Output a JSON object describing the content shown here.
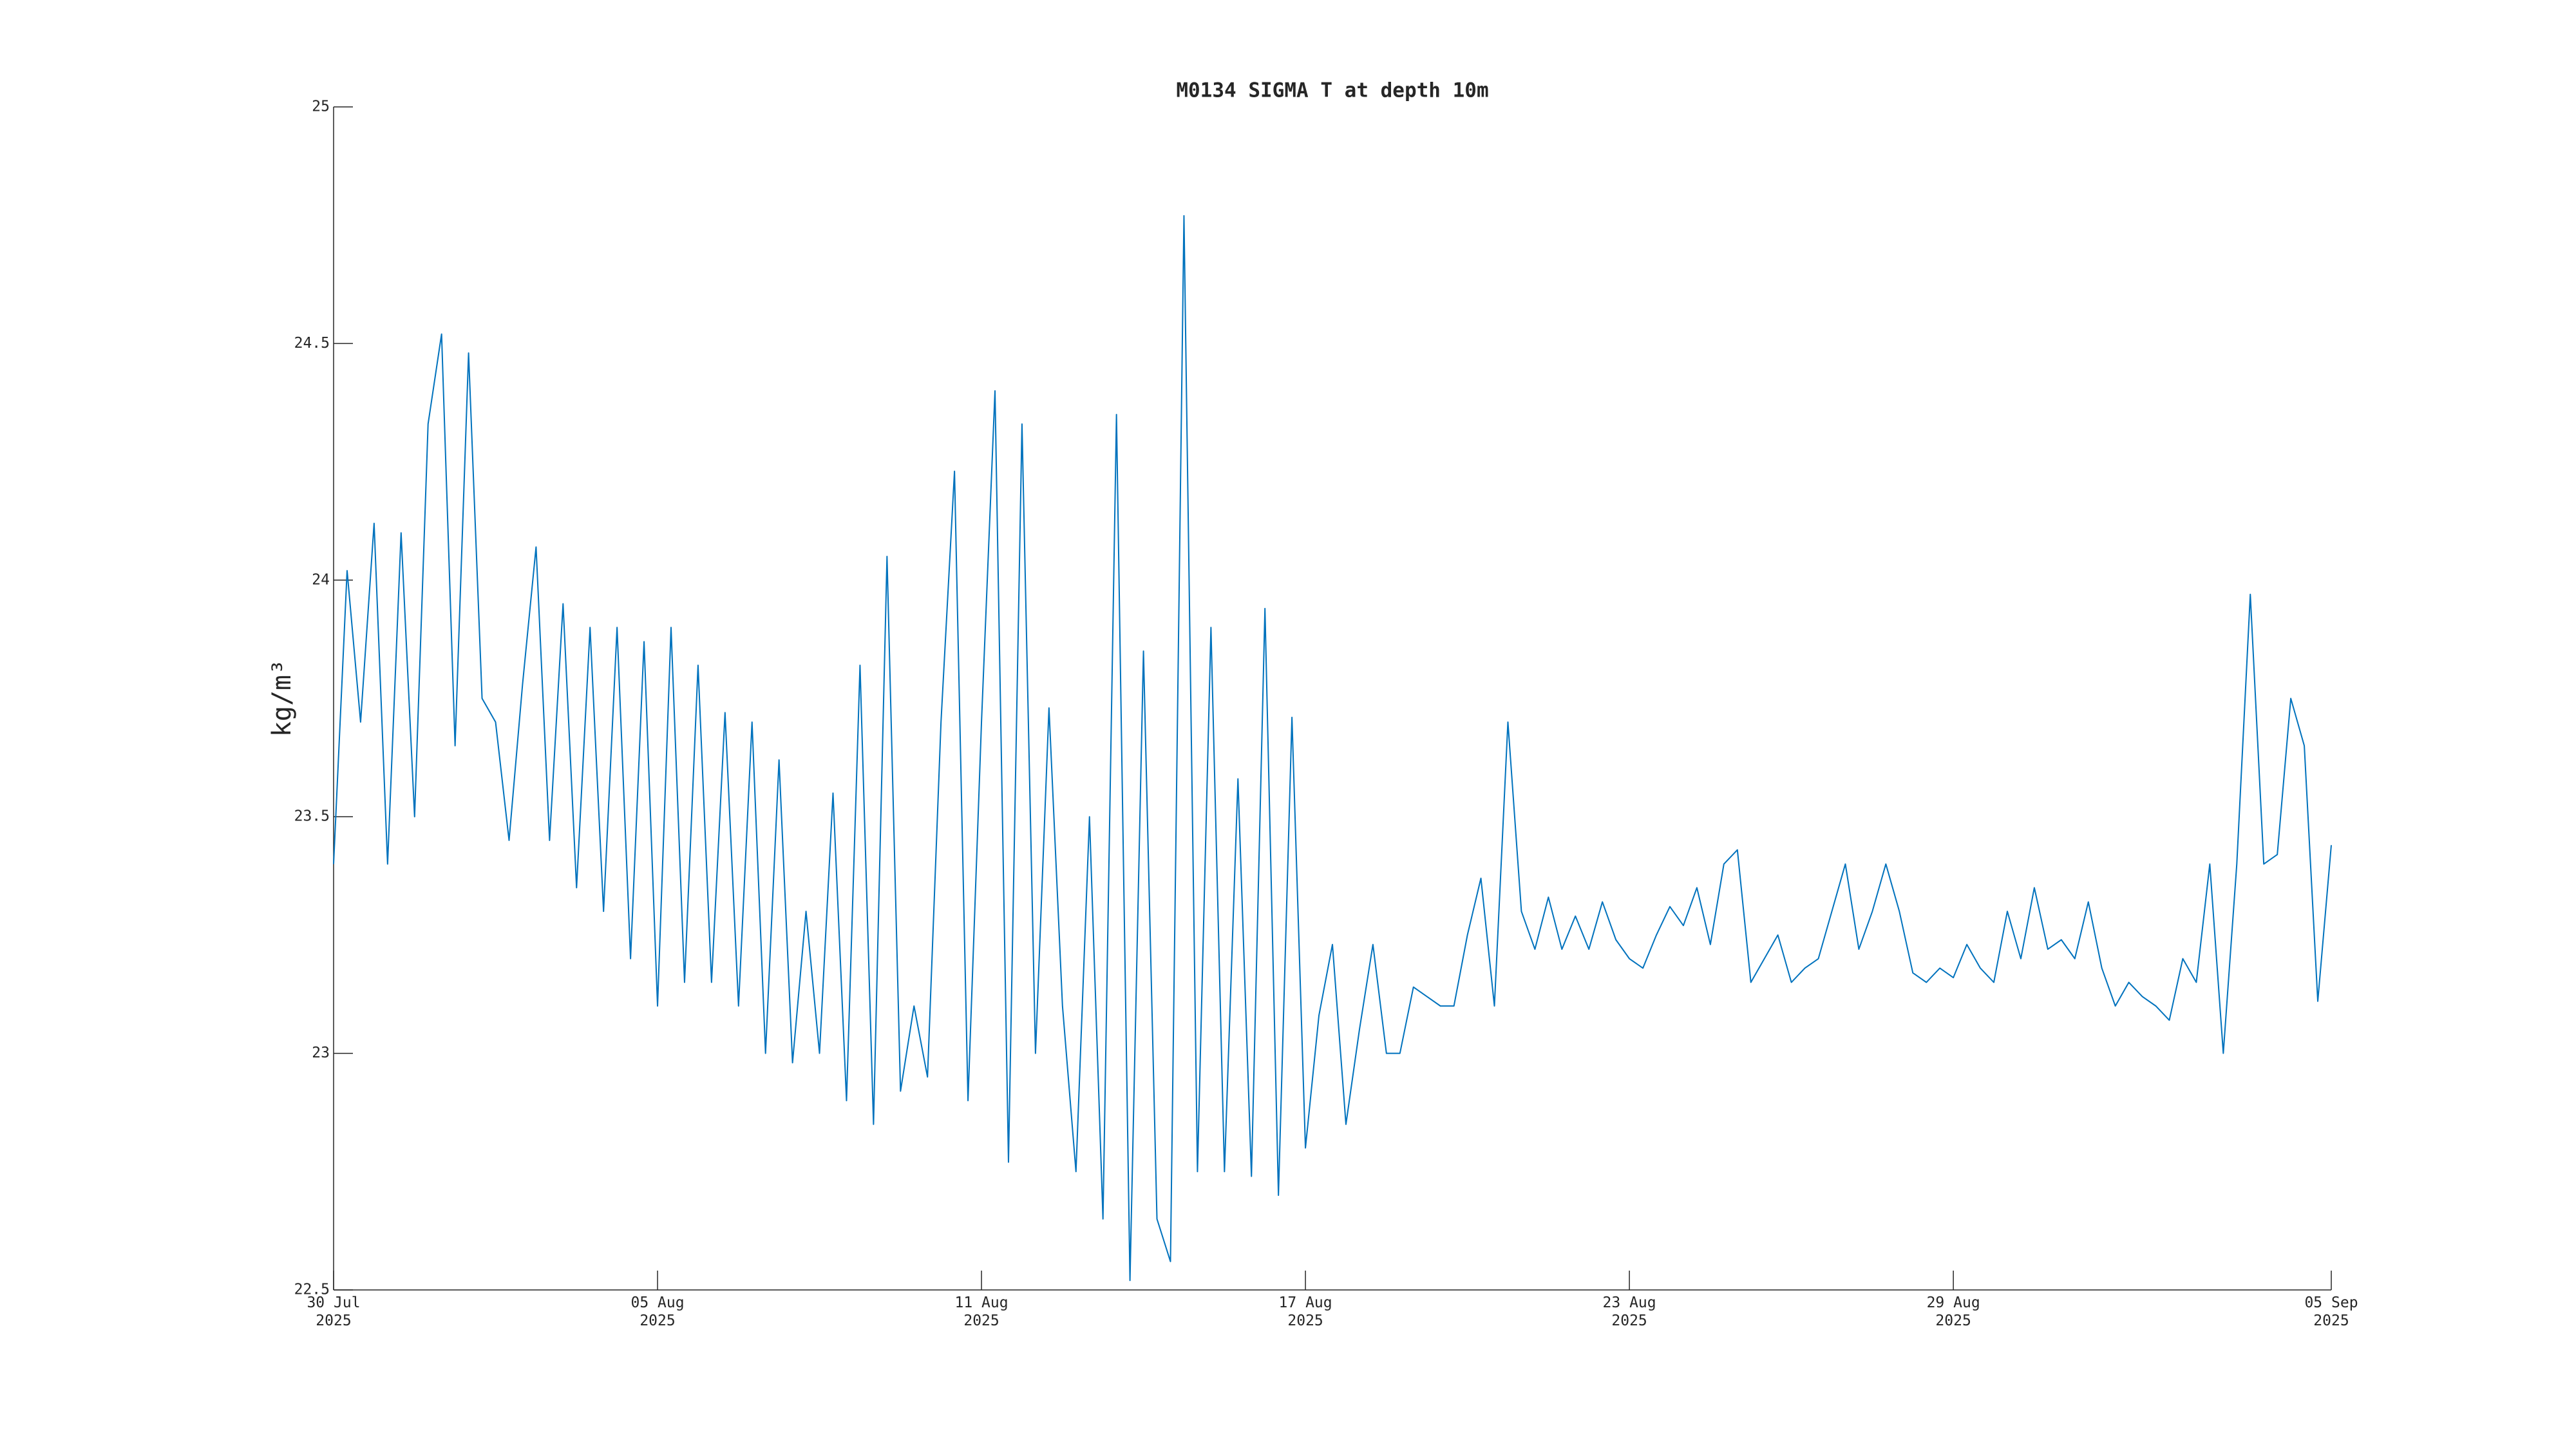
{
  "chart_data": {
    "type": "line",
    "title": "M0134 SIGMA T at depth 10m",
    "y_label": "kg/m³",
    "color": "#0072bd",
    "xlim": [
      "2025-07-30T00:00",
      "2025-09-05T00:00"
    ],
    "xticks": [
      {
        "value": "2025-07-30T00:00",
        "label": "30 Jul\n2025"
      },
      {
        "value": "2025-08-05T00:00",
        "label": "05 Aug\n2025"
      },
      {
        "value": "2025-08-11T00:00",
        "label": "11 Aug\n2025"
      },
      {
        "value": "2025-08-17T00:00",
        "label": "17 Aug\n2025"
      },
      {
        "value": "2025-08-23T00:00",
        "label": "23 Aug\n2025"
      },
      {
        "value": "2025-08-29T00:00",
        "label": "29 Aug\n2025"
      },
      {
        "value": "2025-09-05T00:00",
        "label": "05 Sep\n2025"
      }
    ],
    "ylim": [
      22.5,
      25
    ],
    "yticks": [
      22.5,
      23,
      23.5,
      24,
      24.5,
      25
    ],
    "x": [
      "2025-07-30T00:00",
      "2025-07-30T06:00",
      "2025-07-30T12:00",
      "2025-07-30T18:00",
      "2025-07-31T00:00",
      "2025-07-31T06:00",
      "2025-07-31T12:00",
      "2025-07-31T18:00",
      "2025-08-01T00:00",
      "2025-08-01T06:00",
      "2025-08-01T12:00",
      "2025-08-01T18:00",
      "2025-08-02T00:00",
      "2025-08-02T06:00",
      "2025-08-02T12:00",
      "2025-08-02T18:00",
      "2025-08-03T00:00",
      "2025-08-03T06:00",
      "2025-08-03T12:00",
      "2025-08-03T18:00",
      "2025-08-04T00:00",
      "2025-08-04T06:00",
      "2025-08-04T12:00",
      "2025-08-04T18:00",
      "2025-08-05T00:00",
      "2025-08-05T06:00",
      "2025-08-05T12:00",
      "2025-08-05T18:00",
      "2025-08-06T00:00",
      "2025-08-06T06:00",
      "2025-08-06T12:00",
      "2025-08-06T18:00",
      "2025-08-07T00:00",
      "2025-08-07T06:00",
      "2025-08-07T12:00",
      "2025-08-07T18:00",
      "2025-08-08T00:00",
      "2025-08-08T06:00",
      "2025-08-08T12:00",
      "2025-08-08T18:00",
      "2025-08-09T00:00",
      "2025-08-09T06:00",
      "2025-08-09T12:00",
      "2025-08-09T18:00",
      "2025-08-10T00:00",
      "2025-08-10T06:00",
      "2025-08-10T12:00",
      "2025-08-10T18:00",
      "2025-08-11T00:00",
      "2025-08-11T06:00",
      "2025-08-11T12:00",
      "2025-08-11T18:00",
      "2025-08-12T00:00",
      "2025-08-12T06:00",
      "2025-08-12T12:00",
      "2025-08-12T18:00",
      "2025-08-13T00:00",
      "2025-08-13T06:00",
      "2025-08-13T12:00",
      "2025-08-13T18:00",
      "2025-08-14T00:00",
      "2025-08-14T06:00",
      "2025-08-14T12:00",
      "2025-08-14T18:00",
      "2025-08-15T00:00",
      "2025-08-15T06:00",
      "2025-08-15T12:00",
      "2025-08-15T18:00",
      "2025-08-16T00:00",
      "2025-08-16T06:00",
      "2025-08-16T12:00",
      "2025-08-16T18:00",
      "2025-08-17T00:00",
      "2025-08-17T06:00",
      "2025-08-17T12:00",
      "2025-08-17T18:00",
      "2025-08-18T00:00",
      "2025-08-18T06:00",
      "2025-08-18T12:00",
      "2025-08-18T18:00",
      "2025-08-19T00:00",
      "2025-08-19T06:00",
      "2025-08-19T12:00",
      "2025-08-19T18:00",
      "2025-08-20T00:00",
      "2025-08-20T06:00",
      "2025-08-20T12:00",
      "2025-08-20T18:00",
      "2025-08-21T00:00",
      "2025-08-21T06:00",
      "2025-08-21T12:00",
      "2025-08-21T18:00",
      "2025-08-22T00:00",
      "2025-08-22T06:00",
      "2025-08-22T12:00",
      "2025-08-22T18:00",
      "2025-08-23T00:00",
      "2025-08-23T06:00",
      "2025-08-23T12:00",
      "2025-08-23T18:00",
      "2025-08-24T00:00",
      "2025-08-24T06:00",
      "2025-08-24T12:00",
      "2025-08-24T18:00",
      "2025-08-25T00:00",
      "2025-08-25T06:00",
      "2025-08-25T12:00",
      "2025-08-25T18:00",
      "2025-08-26T00:00",
      "2025-08-26T06:00",
      "2025-08-26T12:00",
      "2025-08-26T18:00",
      "2025-08-27T00:00",
      "2025-08-27T06:00",
      "2025-08-27T12:00",
      "2025-08-27T18:00",
      "2025-08-28T00:00",
      "2025-08-28T06:00",
      "2025-08-28T12:00",
      "2025-08-28T18:00",
      "2025-08-29T00:00",
      "2025-08-29T06:00",
      "2025-08-29T12:00",
      "2025-08-29T18:00",
      "2025-08-30T00:00",
      "2025-08-30T06:00",
      "2025-08-30T12:00",
      "2025-08-30T18:00",
      "2025-08-31T00:00",
      "2025-08-31T06:00",
      "2025-08-31T12:00",
      "2025-08-31T18:00",
      "2025-09-01T00:00",
      "2025-09-01T06:00",
      "2025-09-01T12:00",
      "2025-09-01T18:00",
      "2025-09-02T00:00",
      "2025-09-02T06:00",
      "2025-09-02T12:00",
      "2025-09-02T18:00",
      "2025-09-03T00:00",
      "2025-09-03T06:00",
      "2025-09-03T12:00",
      "2025-09-03T18:00",
      "2025-09-04T00:00",
      "2025-09-04T06:00",
      "2025-09-04T12:00",
      "2025-09-04T18:00",
      "2025-09-05T00:00"
    ],
    "values": [
      23.4,
      24.02,
      23.7,
      24.12,
      23.4,
      24.1,
      23.5,
      24.33,
      24.52,
      23.65,
      24.48,
      23.75,
      23.7,
      23.45,
      23.78,
      24.07,
      23.45,
      23.95,
      23.35,
      23.9,
      23.3,
      23.9,
      23.2,
      23.87,
      23.1,
      23.9,
      23.15,
      23.82,
      23.15,
      23.72,
      23.1,
      23.7,
      23.0,
      23.62,
      22.98,
      23.3,
      23.0,
      23.55,
      22.9,
      23.82,
      22.85,
      24.05,
      22.92,
      23.1,
      22.95,
      23.7,
      24.23,
      22.9,
      23.7,
      24.4,
      22.77,
      24.33,
      23.0,
      23.73,
      23.1,
      22.75,
      23.5,
      22.65,
      24.35,
      22.52,
      23.85,
      22.65,
      22.56,
      24.77,
      22.75,
      23.9,
      22.75,
      23.58,
      22.74,
      23.94,
      22.7,
      23.71,
      22.8,
      23.08,
      23.23,
      22.85,
      23.05,
      23.23,
      23.0,
      23.0,
      23.14,
      23.12,
      23.1,
      23.1,
      23.25,
      23.37,
      23.1,
      23.7,
      23.3,
      23.22,
      23.33,
      23.22,
      23.29,
      23.22,
      23.32,
      23.24,
      23.2,
      23.18,
      23.25,
      23.31,
      23.27,
      23.35,
      23.23,
      23.4,
      23.43,
      23.15,
      23.2,
      23.25,
      23.15,
      23.18,
      23.2,
      23.3,
      23.4,
      23.22,
      23.3,
      23.4,
      23.3,
      23.17,
      23.15,
      23.18,
      23.16,
      23.23,
      23.18,
      23.15,
      23.3,
      23.2,
      23.35,
      23.22,
      23.24,
      23.2,
      23.32,
      23.18,
      23.1,
      23.15,
      23.12,
      23.1,
      23.07,
      23.2,
      23.15,
      23.4,
      23.0,
      23.4,
      23.97,
      23.4,
      23.42,
      23.75,
      23.65,
      23.11,
      23.44
    ]
  }
}
